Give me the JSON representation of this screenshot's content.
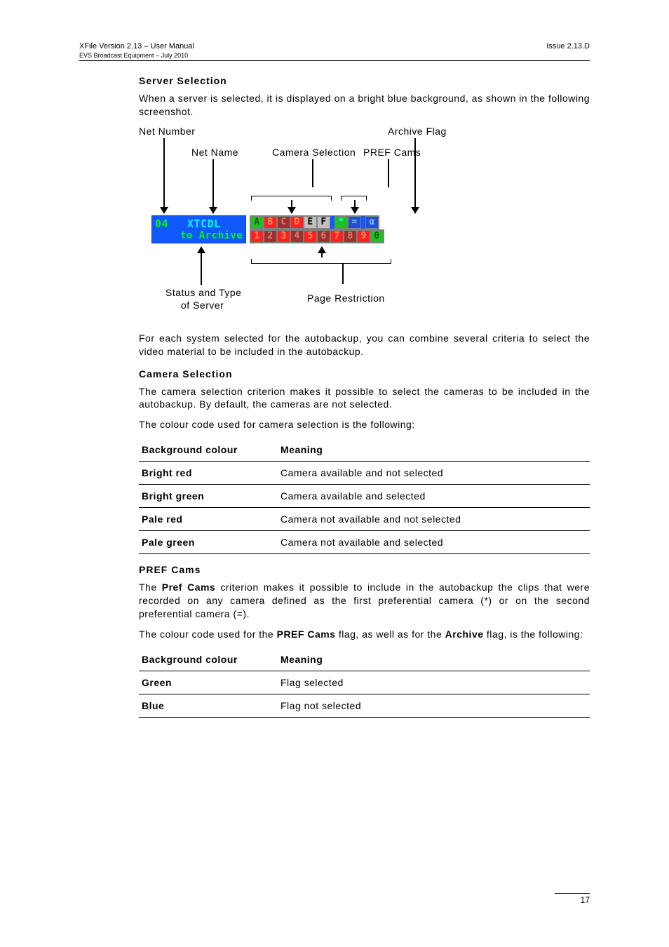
{
  "header": {
    "title": "XFile Version 2.13 – User Manual",
    "sub": "EVS Broadcast Equipment – July 2010",
    "issue": "Issue 2.13.D"
  },
  "s1": {
    "heading": "Server Selection",
    "p1": "When a server is selected, it is displayed on a bright blue background, as shown in the following screenshot.",
    "p2": "For each system selected for the autobackup, you can combine several criteria to select the video material to be included in the autobackup."
  },
  "diagram": {
    "labels": {
      "net_number": "Net Number",
      "archive_flag": "Archive Flag",
      "net_name": "Net Name",
      "camera_selection": "Camera Selection",
      "pref_cams": "PREF Cams",
      "status_type_1": "Status and Type",
      "status_type_2": "of Server",
      "page_restriction": "Page Restriction"
    },
    "server": {
      "num": "04",
      "name": "XTCDL",
      "status": "to Archive"
    },
    "row1": [
      "A",
      "B",
      "C",
      "D",
      "E",
      "F",
      "*",
      "=",
      "α"
    ],
    "row1_colors": [
      "c-green-b",
      "c-red-b",
      "c-red-p",
      "c-red-b",
      "c-grey",
      "c-grey",
      "c-green-cyan",
      "c-blue",
      "c-blue"
    ],
    "row2": [
      "1",
      "2",
      "3",
      "4",
      "5",
      "6",
      "7",
      "8",
      "9",
      "0"
    ],
    "row2_colors": [
      "c-red-b",
      "c-red-p",
      "c-red-b",
      "c-red-p",
      "c-red-b",
      "c-red-p",
      "c-red-b",
      "c-red-p",
      "c-red-b",
      "c-green-b"
    ]
  },
  "s2": {
    "heading": "Camera Selection",
    "p1": "The camera selection criterion makes it possible to select the cameras to be included in the autobackup. By default, the cameras are not selected.",
    "p2": "The colour code used for camera selection is the following:",
    "table": {
      "h1": "Background colour",
      "h2": "Meaning",
      "rows": [
        [
          "Bright red",
          "Camera available and not selected"
        ],
        [
          "Bright green",
          "Camera available and selected"
        ],
        [
          "Pale red",
          "Camera not available and not selected"
        ],
        [
          "Pale green",
          "Camera not available and selected"
        ]
      ]
    }
  },
  "s3": {
    "heading": "PREF Cams",
    "p1a": "The ",
    "p1b": "Pref Cams",
    "p1c": " criterion makes it possible to include in the autobackup the clips that were recorded on any camera defined as the first preferential camera (*) or on the second preferential camera (=).",
    "p2a": "The colour code used for the ",
    "p2b": "PREF Cams",
    "p2c": " flag, as well as for the ",
    "p2d": "Archive",
    "p2e": " flag, is the following:",
    "table": {
      "h1": "Background colour",
      "h2": "Meaning",
      "rows": [
        [
          "Green",
          "Flag selected"
        ],
        [
          "Blue",
          "Flag not selected"
        ]
      ]
    }
  },
  "footer": {
    "page": "17"
  }
}
